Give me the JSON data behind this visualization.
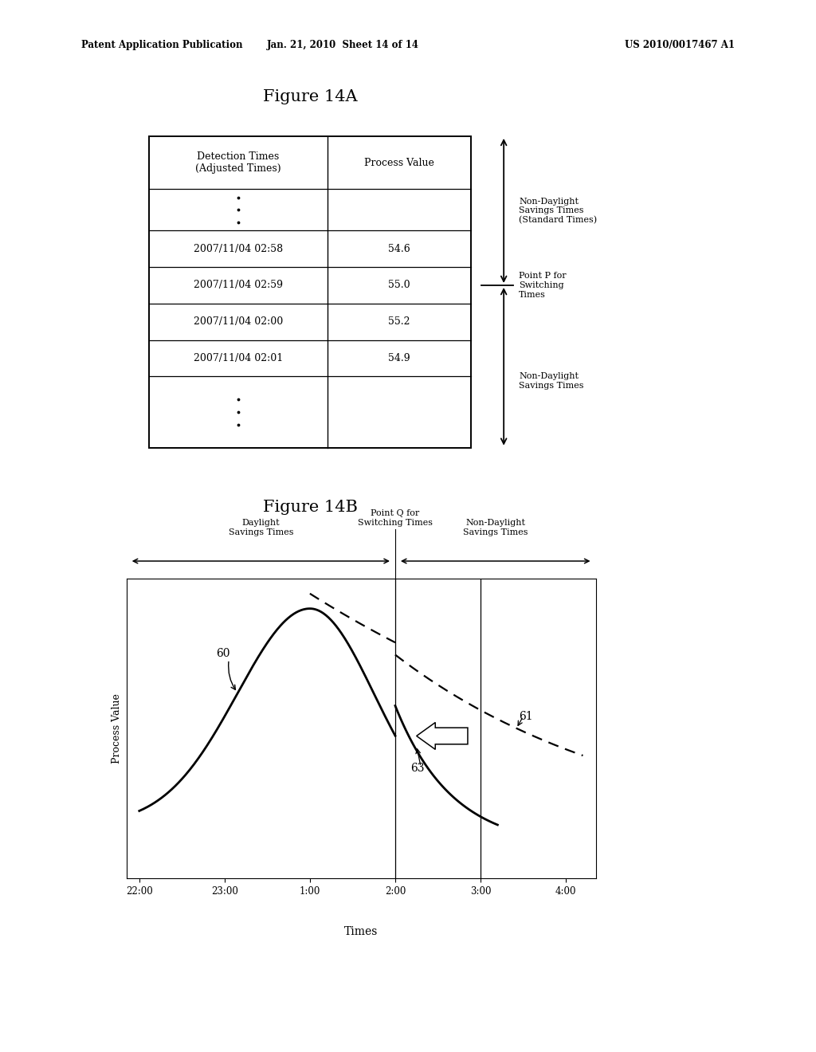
{
  "header_text_left": "Patent Application Publication",
  "header_text_mid": "Jan. 21, 2010  Sheet 14 of 14",
  "header_text_right": "US 2010/0017467 A1",
  "fig14a_title": "Figure 14A",
  "fig14b_title": "Figure 14B",
  "table_col1_header": "Detection Times\n(Adjusted Times)",
  "table_col2_header": "Process Value",
  "table_rows": [
    [
      "2007/11/04 02:58",
      "54.6"
    ],
    [
      "2007/11/04 02:59",
      "55.0"
    ],
    [
      "2007/11/04 02:00",
      "55.2"
    ],
    [
      "2007/11/04 02:01",
      "54.9"
    ]
  ],
  "arrow_label_upper": "Non-Daylight\nSavings Times\n(Standard Times)",
  "arrow_label_point": "Point P for\nSwitching\nTimes",
  "arrow_label_lower": "Non-Daylight\nSavings Times",
  "fig14b_xlabel": "Times",
  "fig14b_ylabel": "Process Value",
  "fig14b_xticks": [
    "22:00",
    "23:00",
    "1:00",
    "2:00",
    "3:00",
    "4:00"
  ],
  "label_60": "60",
  "label_61": "61",
  "label_63": "63",
  "label_pointQ": "Point Q for\nSwitching Times",
  "label_daylight": "Daylight\nSavings Times",
  "label_nondaylight": "Non-Daylight\nSavings Times",
  "bg_color": "#ffffff",
  "text_color": "#000000",
  "fig_w": 1024,
  "fig_h": 1320
}
